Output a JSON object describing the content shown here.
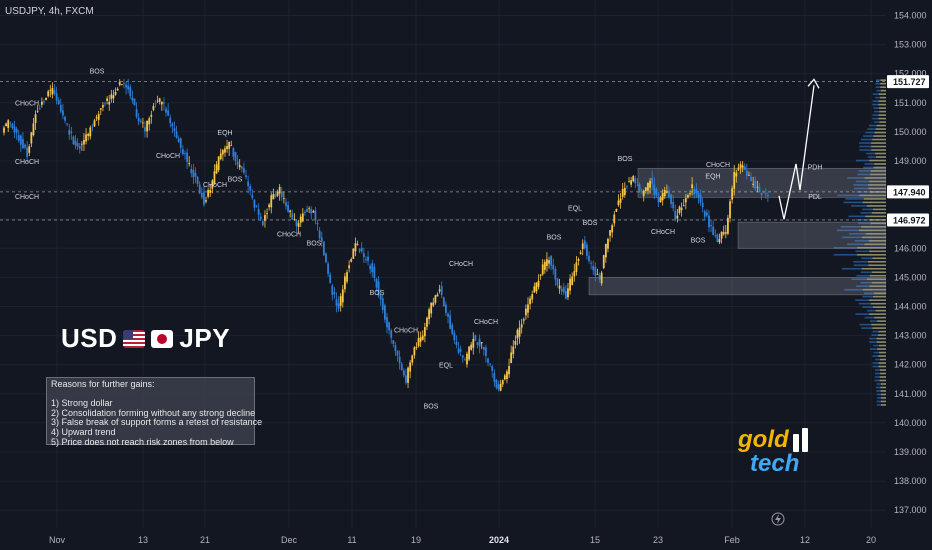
{
  "header": {
    "symbol_line": "USDJPY, 4h, FXCM"
  },
  "title_block": {
    "base": "USD",
    "quote": "JPY"
  },
  "notes": {
    "heading": "Reasons for further gains:",
    "items": [
      "1) Strong dollar",
      "2) Consolidation forming without any strong decline",
      "3) False break of support forms a retest of resistance",
      "4) Upward trend",
      "5) Price does not reach risk zones from below"
    ]
  },
  "brand": {
    "line1": "gold",
    "line2": "tech"
  },
  "colors": {
    "background": "#131722",
    "bull": "#f7c548",
    "bear": "#2f7fd8",
    "text": "#b2b5be",
    "price_tag": "#ffffff"
  },
  "chart_data": {
    "type": "candlestick",
    "symbol": "USDJPY",
    "timeframe": "4h",
    "source": "FXCM",
    "y_axis": {
      "ticks": [
        137.0,
        138.0,
        139.0,
        140.0,
        141.0,
        142.0,
        143.0,
        144.0,
        145.0,
        146.0,
        147.0,
        148.0,
        149.0,
        150.0,
        151.0,
        152.0,
        153.0,
        154.0
      ],
      "ylim": [
        136.6,
        154.3
      ]
    },
    "x_axis": {
      "ticks": [
        "Nov",
        "13",
        "21",
        "Dec",
        "11",
        "19",
        "2024",
        "15",
        "23",
        "Feb",
        "12",
        "20"
      ]
    },
    "price_tags": [
      151.727,
      147.94,
      146.972
    ],
    "price_path": [
      [
        "Nov",
        150.1
      ],
      [
        "Nov",
        150.4
      ],
      [
        "Nov",
        149.8
      ],
      [
        "Nov",
        149.2
      ],
      [
        "Nov",
        150.6
      ],
      [
        "Nov",
        151.1
      ],
      [
        "Nov",
        151.5
      ],
      [
        "Nov",
        150.7
      ],
      [
        "Nov",
        150.0
      ],
      [
        "Nov",
        149.4
      ],
      [
        "Nov",
        149.8
      ],
      [
        "Nov",
        150.4
      ],
      [
        "Nov",
        150.9
      ],
      [
        "Nov",
        151.2
      ],
      [
        "13",
        151.7
      ],
      [
        "13",
        151.5
      ],
      [
        "13",
        150.6
      ],
      [
        "13",
        150.1
      ],
      [
        "13",
        150.9
      ],
      [
        "13",
        151.1
      ],
      [
        "13",
        150.3
      ],
      [
        "13",
        149.7
      ],
      [
        "21",
        149.0
      ],
      [
        "21",
        148.4
      ],
      [
        "21",
        147.6
      ],
      [
        "21",
        148.3
      ],
      [
        "21",
        149.3
      ],
      [
        "21",
        149.6
      ],
      [
        "21",
        148.9
      ],
      [
        "21",
        148.4
      ],
      [
        "Dec",
        147.5
      ],
      [
        "Dec",
        146.9
      ],
      [
        "Dec",
        147.7
      ],
      [
        "Dec",
        148.0
      ],
      [
        "Dec",
        147.3
      ],
      [
        "Dec",
        146.8
      ],
      [
        "Dec",
        147.3
      ],
      [
        "Dec",
        147.2
      ],
      [
        "11",
        146.2
      ],
      [
        "11",
        144.7
      ],
      [
        "11",
        143.9
      ],
      [
        "11",
        145.3
      ],
      [
        "11",
        146.2
      ],
      [
        "11",
        145.7
      ],
      [
        "11",
        145.3
      ],
      [
        "11",
        144.2
      ],
      [
        "19",
        143.1
      ],
      [
        "19",
        142.2
      ],
      [
        "19",
        141.5
      ],
      [
        "19",
        142.6
      ],
      [
        "19",
        143.0
      ],
      [
        "19",
        144.1
      ],
      [
        "19",
        144.6
      ],
      [
        "19",
        143.6
      ],
      [
        "2024",
        142.6
      ],
      [
        "2024",
        142.1
      ],
      [
        "2024",
        142.9
      ],
      [
        "2024",
        142.7
      ],
      [
        "2024",
        141.9
      ],
      [
        "2024",
        141.1
      ],
      [
        "2024",
        141.7
      ],
      [
        "15",
        142.9
      ],
      [
        "15",
        143.6
      ],
      [
        "15",
        144.4
      ],
      [
        "15",
        145.2
      ],
      [
        "15",
        145.7
      ],
      [
        "15",
        144.7
      ],
      [
        "15",
        144.4
      ],
      [
        "15",
        145.3
      ],
      [
        "23",
        146.2
      ],
      [
        "23",
        145.4
      ],
      [
        "23",
        144.9
      ],
      [
        "23",
        146.4
      ],
      [
        "23",
        147.4
      ],
      [
        "23",
        148.1
      ],
      [
        "23",
        148.4
      ],
      [
        "23",
        147.8
      ],
      [
        "Feb",
        148.3
      ],
      [
        "Feb",
        147.6
      ],
      [
        "Feb",
        148.0
      ],
      [
        "Feb",
        147.1
      ],
      [
        "Feb",
        147.6
      ],
      [
        "Feb",
        148.1
      ],
      [
        "Feb",
        147.6
      ],
      [
        "Feb",
        146.8
      ],
      [
        "12",
        146.3
      ],
      [
        "12",
        146.6
      ],
      [
        "12",
        148.5
      ],
      [
        "12",
        148.9
      ],
      [
        "12",
        148.3
      ],
      [
        "12",
        147.9
      ],
      [
        "12",
        147.8
      ]
    ],
    "annotations": [
      {
        "text": "BOS",
        "price": 152.0,
        "date_label": "Nov"
      },
      {
        "text": "CHoCH",
        "price": 150.9,
        "date_label": "Nov"
      },
      {
        "text": "CHoCH",
        "price": 148.9,
        "date_label": "Nov"
      },
      {
        "text": "CHoCH",
        "price": 147.7,
        "date_label": "Nov"
      },
      {
        "text": "CHoCH",
        "price": 149.1,
        "date_label": "13"
      },
      {
        "text": "EQH",
        "price": 149.9,
        "date_label": "21"
      },
      {
        "text": "BOS",
        "price": 148.3,
        "date_label": "21"
      },
      {
        "text": "CHoCH",
        "price": 148.1,
        "date_label": "21"
      },
      {
        "text": "CHoCH",
        "price": 146.4,
        "date_label": "Dec"
      },
      {
        "text": "BOS",
        "price": 146.1,
        "date_label": "Dec"
      },
      {
        "text": "BOS",
        "price": 144.4,
        "date_label": "11"
      },
      {
        "text": "CHoCH",
        "price": 145.4,
        "date_label": "19"
      },
      {
        "text": "CHoCH",
        "price": 143.1,
        "date_label": "19"
      },
      {
        "text": "CHoCH",
        "price": 143.4,
        "date_label": "19"
      },
      {
        "text": "EQL",
        "price": 141.9,
        "date_label": "19"
      },
      {
        "text": "BOS",
        "price": 140.5,
        "date_label": "19"
      },
      {
        "text": "BOS",
        "price": 146.3,
        "date_label": "2024"
      },
      {
        "text": "BOS",
        "price": 146.8,
        "date_label": "15"
      },
      {
        "text": "BOS",
        "price": 149.0,
        "date_label": "15"
      },
      {
        "text": "EQL",
        "price": 147.3,
        "date_label": "15"
      },
      {
        "text": "CHoCH",
        "price": 146.5,
        "date_label": "23"
      },
      {
        "text": "BOS",
        "price": 146.2,
        "date_label": "23"
      },
      {
        "text": "CHoCH",
        "price": 148.8,
        "date_label": "23"
      },
      {
        "text": "EQH",
        "price": 148.4,
        "date_label": "23"
      },
      {
        "text": "PDH",
        "price": 148.7,
        "date_label": "12"
      },
      {
        "text": "PDL",
        "price": 147.7,
        "date_label": "12"
      }
    ],
    "levels": [
      151.727,
      147.94,
      146.972
    ],
    "zones": [
      {
        "from_label": "23",
        "to_label": "20",
        "low": 147.75,
        "high": 148.75
      },
      {
        "from_label": "Feb",
        "to_label": "20",
        "low": 146.0,
        "high": 146.9
      },
      {
        "from_label": "15",
        "to_label": "20",
        "low": 144.4,
        "high": 145.0
      }
    ],
    "projection": [
      147.8,
      147.0,
      148.9,
      148.0,
      151.6
    ]
  }
}
